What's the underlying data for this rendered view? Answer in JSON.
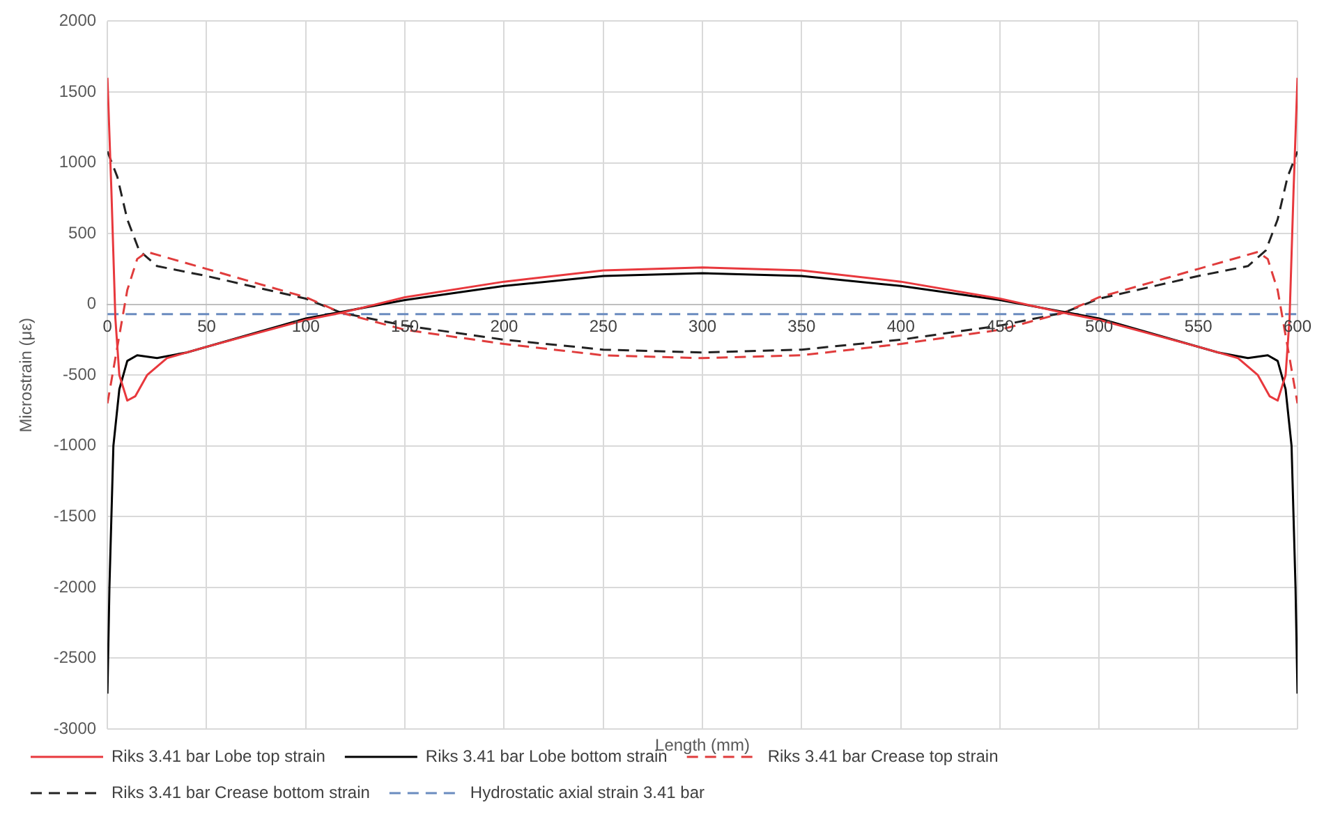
{
  "chart_data": {
    "type": "line",
    "xlabel": "Length (mm)",
    "ylabel": "Microstrain (με)",
    "xlim": [
      0,
      600
    ],
    "xticks": [
      0,
      50,
      100,
      150,
      200,
      250,
      300,
      350,
      400,
      450,
      500,
      550,
      600
    ],
    "ylim": [
      -3000,
      2000
    ],
    "yticks": [
      -3000,
      -2500,
      -2000,
      -1500,
      -1000,
      -500,
      0,
      500,
      1000,
      1500,
      2000
    ],
    "grid": true,
    "legend": "bottom",
    "marker": "none",
    "series": [
      {
        "name": "Riks 3.41 bar Lobe top strain",
        "color": "#e8383d",
        "line_style": "solid",
        "x": [
          0,
          2,
          4,
          6,
          10,
          14,
          20,
          30,
          50,
          100,
          118,
          150,
          200,
          250,
          300,
          350,
          400,
          450,
          482,
          500,
          550,
          570,
          580,
          586,
          590,
          594,
          596,
          598,
          600
        ],
        "values": [
          1600,
          800,
          -100,
          -500,
          -680,
          -650,
          -500,
          -380,
          -300,
          -110,
          -60,
          50,
          160,
          240,
          260,
          240,
          160,
          40,
          -60,
          -110,
          -300,
          -380,
          -500,
          -650,
          -680,
          -500,
          -100,
          800,
          1600
        ]
      },
      {
        "name": "Riks 3.41 bar Lobe bottom strain",
        "color": "#000000",
        "line_style": "solid",
        "x": [
          0,
          1,
          3,
          6,
          10,
          15,
          25,
          40,
          100,
          150,
          200,
          250,
          300,
          350,
          400,
          450,
          500,
          560,
          575,
          585,
          590,
          594,
          597,
          599,
          600
        ],
        "values": [
          -2750,
          -2000,
          -1000,
          -600,
          -400,
          -360,
          -380,
          -340,
          -100,
          30,
          130,
          200,
          220,
          200,
          130,
          30,
          -100,
          -340,
          -380,
          -360,
          -400,
          -600,
          -1000,
          -2000,
          -2750
        ]
      },
      {
        "name": "Riks 3.41 bar Crease top strain",
        "color": "#e03c3c",
        "line_style": "dashed",
        "x": [
          0,
          5,
          10,
          15,
          20,
          50,
          100,
          118,
          150,
          200,
          250,
          300,
          350,
          400,
          450,
          482,
          500,
          550,
          580,
          585,
          590,
          595,
          600
        ],
        "values": [
          -700,
          -300,
          100,
          320,
          370,
          250,
          50,
          -60,
          -180,
          -280,
          -360,
          -380,
          -360,
          -280,
          -180,
          -60,
          50,
          250,
          370,
          320,
          100,
          -300,
          -700
        ]
      },
      {
        "name": "Riks 3.41 bar Crease bottom strain",
        "color": "#222222",
        "line_style": "dashed",
        "x": [
          0,
          5,
          10,
          16,
          25,
          50,
          100,
          118,
          150,
          200,
          250,
          300,
          350,
          400,
          450,
          482,
          500,
          550,
          575,
          584,
          590,
          595,
          600
        ],
        "values": [
          1080,
          900,
          600,
          380,
          270,
          200,
          40,
          -60,
          -150,
          -250,
          -320,
          -340,
          -320,
          -250,
          -150,
          -60,
          40,
          200,
          270,
          380,
          600,
          900,
          1080
        ]
      },
      {
        "name": "Hydrostatic axial strain 3.41 bar",
        "color": "#6a8bbf",
        "line_style": "dashed",
        "x": [
          0,
          600
        ],
        "values": [
          -70,
          -70
        ]
      }
    ]
  }
}
